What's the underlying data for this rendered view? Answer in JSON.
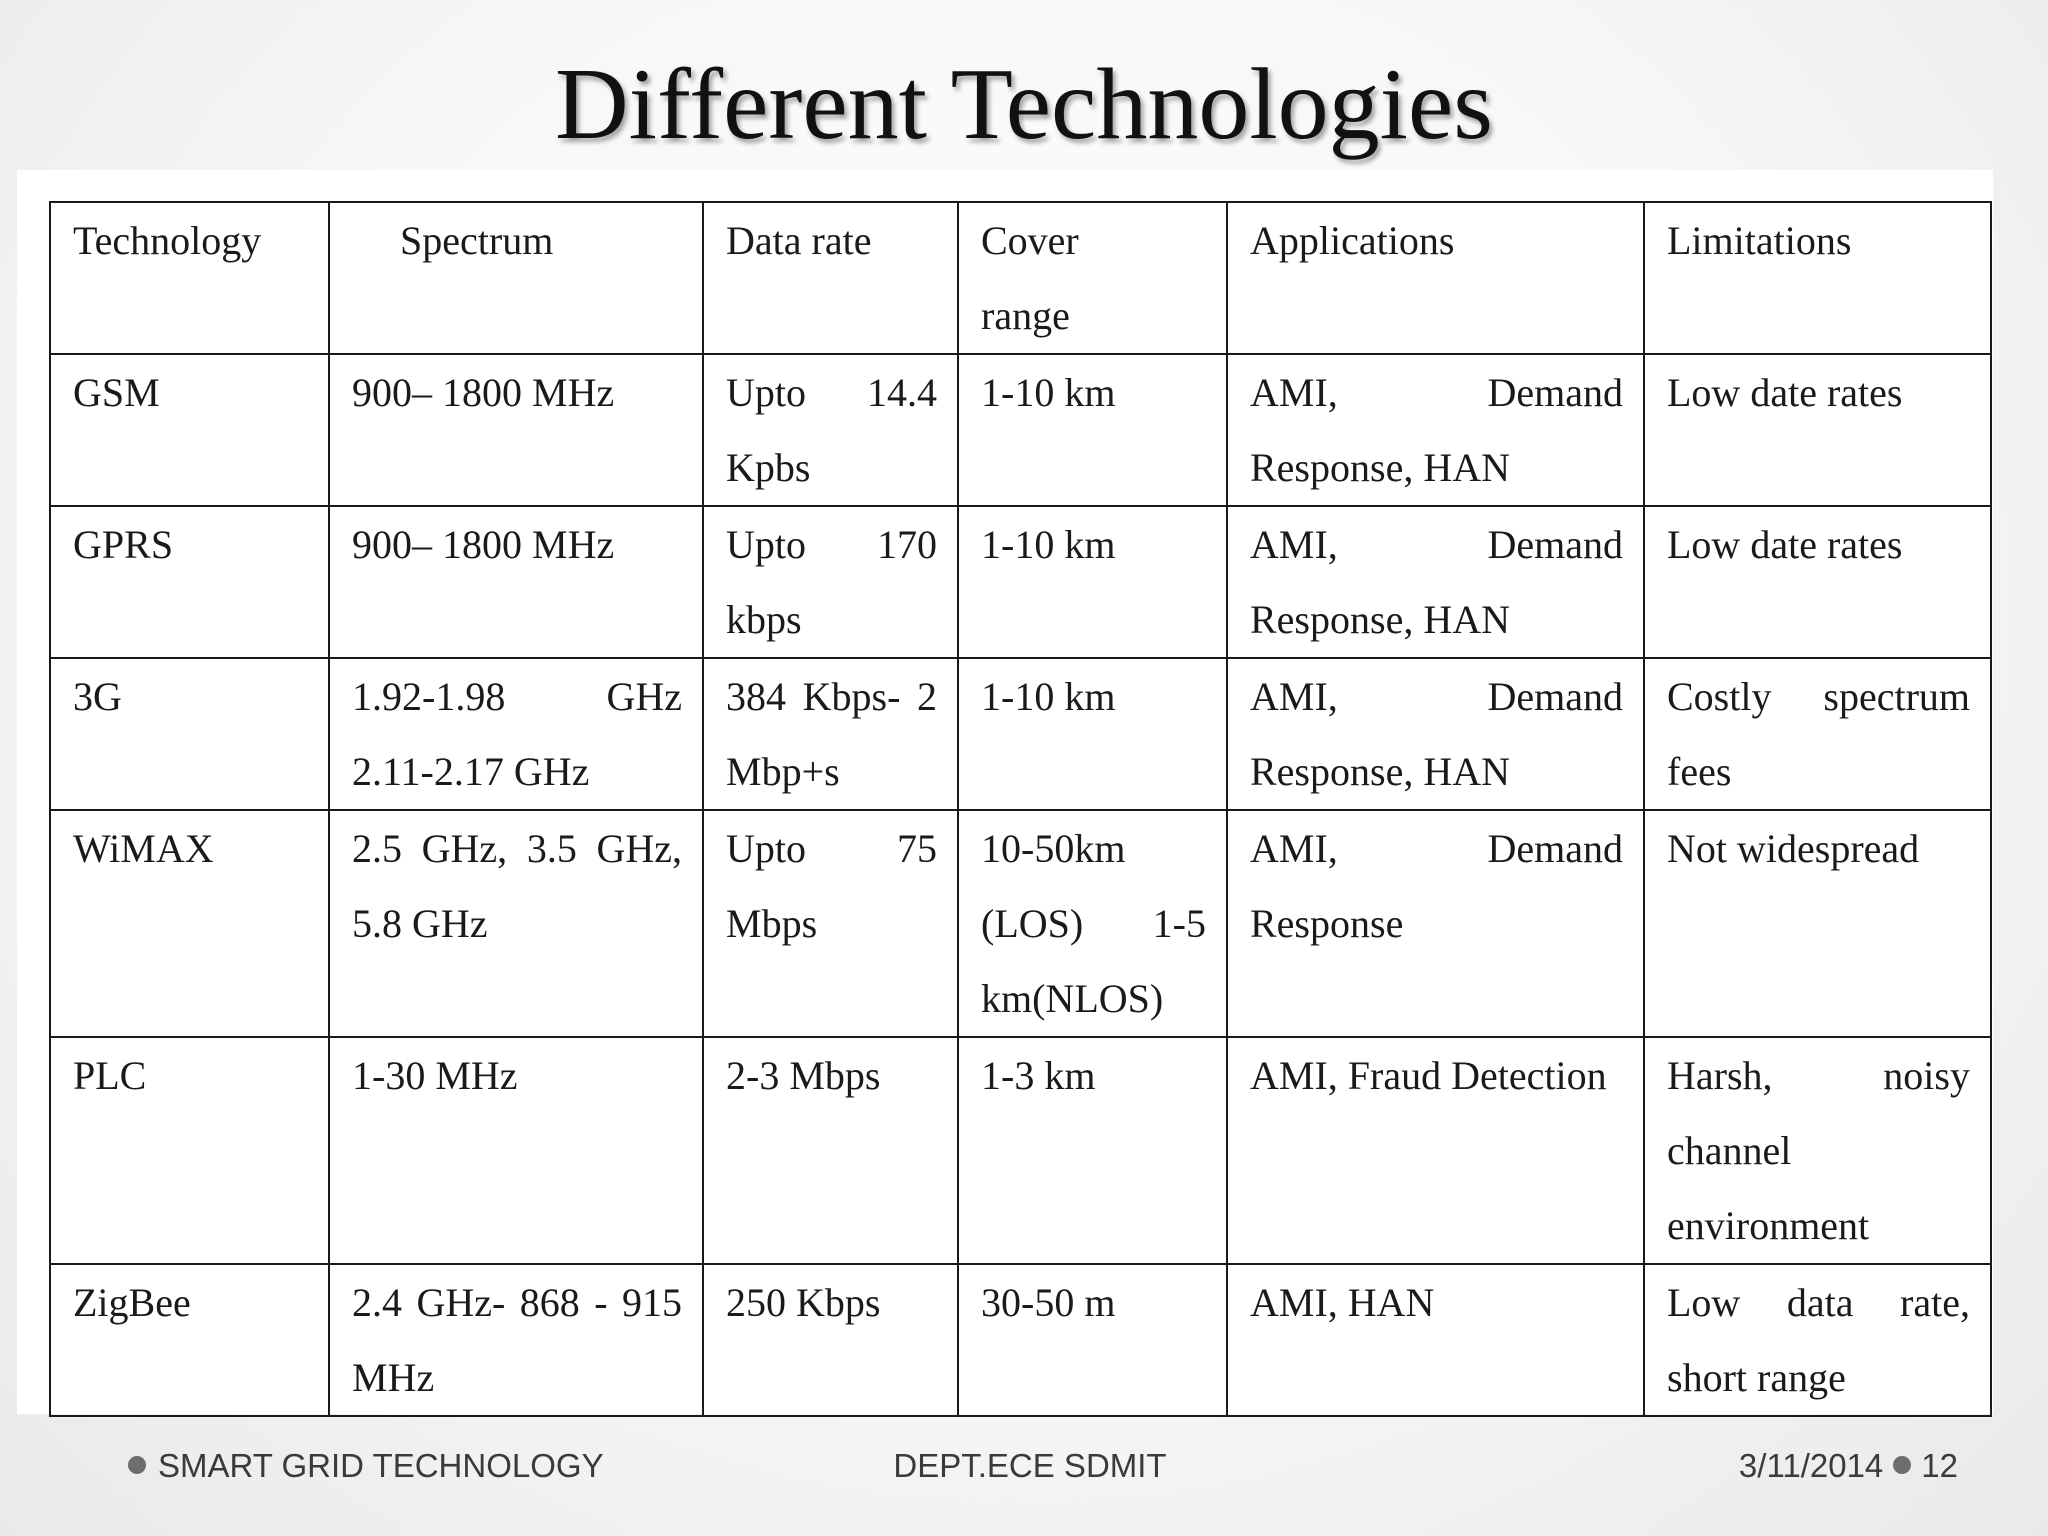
{
  "slide": {
    "title": "Different Technologies"
  },
  "table": {
    "headers": [
      "Technology",
      "Spectrum",
      "Data rate",
      "Cover range",
      "Applications",
      "Limitations"
    ],
    "rows": [
      [
        "GSM",
        "900– 1800 MHz",
        "Upto 14.4 Kpbs",
        "1-10 km",
        "AMI, Demand Response, HAN",
        "Low date rates"
      ],
      [
        "GPRS",
        "900– 1800 MHz",
        "Upto 170 kbps",
        "1-10 km",
        "AMI, Demand Response, HAN",
        "Low date rates"
      ],
      [
        "3G",
        "1.92-1.98 GHz 2.11-2.17 GHz",
        "384 Kbps- 2 Mbp+s",
        "1-10 km",
        "AMI, Demand Response, HAN",
        "Costly spectrum fees"
      ],
      [
        "WiMAX",
        "2.5 GHz, 3.5 GHz, 5.8 GHz",
        "Upto 75 Mbps",
        "10-50km (LOS) 1-5 km(NLOS)",
        "AMI, Demand Response",
        "Not widespread"
      ],
      [
        "PLC",
        "1-30 MHz",
        "2-3 Mbps",
        "1-3 km",
        "AMI, Fraud Detection",
        "Harsh, noisy channel environment"
      ],
      [
        "ZigBee",
        "2.4 GHz- 868 - 915 MHz",
        "250 Kbps",
        "30-50 m",
        "AMI, HAN",
        "Low data rate, short range"
      ]
    ]
  },
  "footer": {
    "left": "SMART GRID TECHNOLOGY",
    "center": "DEPT.ECE SDMIT",
    "date": "3/11/2014",
    "page": "12"
  }
}
